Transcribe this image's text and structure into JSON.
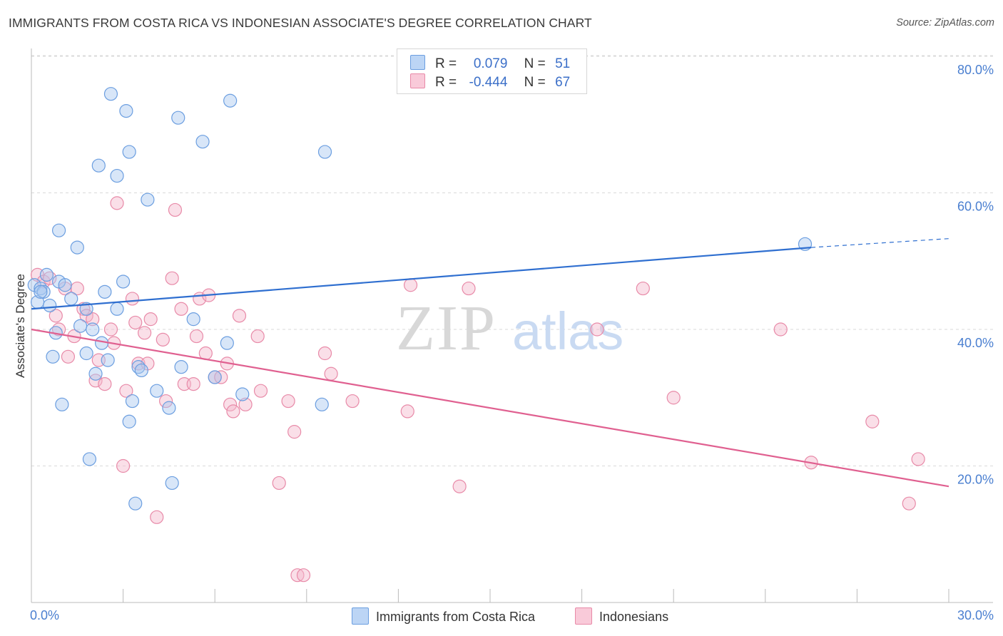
{
  "title": "IMMIGRANTS FROM COSTA RICA VS INDONESIAN ASSOCIATE'S DEGREE CORRELATION CHART",
  "source": "Source: ZipAtlas.com",
  "watermark": {
    "zip": "ZIP",
    "atlas": "atlas"
  },
  "legend": {
    "rows": [
      {
        "r_label": "R =",
        "r_value": "0.079",
        "n_label": "N =",
        "n_value": "51"
      },
      {
        "r_label": "R =",
        "r_value": "-0.444",
        "n_label": "N =",
        "n_value": "67"
      }
    ]
  },
  "colors": {
    "blue": "#a8c8f0",
    "blue_stroke": "#6b9ee0",
    "blue_line": "#2f6fd0",
    "pink": "#f5b8cc",
    "pink_stroke": "#e88aa8",
    "pink_line": "#e06090",
    "tick": "#4a7fd0",
    "grid": "#d9d9d9"
  },
  "chart_data": {
    "type": "scatter",
    "title": "IMMIGRANTS FROM COSTA RICA VS INDONESIAN ASSOCIATE'S DEGREE CORRELATION CHART",
    "xlabel": "",
    "ylabel": "Associate's Degree",
    "xlim": [
      0,
      30
    ],
    "ylim": [
      0,
      82
    ],
    "x_ticks": [
      "0.0%",
      "30.0%"
    ],
    "y_ticks": [
      {
        "value": 20,
        "label": "20.0%"
      },
      {
        "value": 40,
        "label": "40.0%"
      },
      {
        "value": 60,
        "label": "60.0%"
      },
      {
        "value": 80,
        "label": "80.0%"
      }
    ],
    "grid": true,
    "legend_position": "top-center",
    "series": [
      {
        "name": "Immigrants from Costa Rica",
        "color": "blue",
        "trend": {
          "x": [
            0,
            25.5
          ],
          "y": [
            43.0,
            52.0
          ],
          "dashed_to": [
            30,
            53.3
          ]
        },
        "points": [
          [
            0.1,
            46.5
          ],
          [
            0.2,
            44.0
          ],
          [
            0.3,
            46.0
          ],
          [
            0.4,
            45.5
          ],
          [
            0.5,
            48.0
          ],
          [
            0.6,
            43.5
          ],
          [
            0.7,
            36.0
          ],
          [
            0.8,
            39.5
          ],
          [
            0.9,
            47.0
          ],
          [
            1.1,
            46.5
          ],
          [
            1.3,
            44.5
          ],
          [
            0.9,
            54.5
          ],
          [
            1.0,
            29.0
          ],
          [
            1.5,
            52.0
          ],
          [
            1.6,
            40.5
          ],
          [
            1.8,
            43.0
          ],
          [
            1.8,
            36.5
          ],
          [
            1.9,
            21.0
          ],
          [
            2.0,
            40.0
          ],
          [
            2.1,
            33.5
          ],
          [
            2.3,
            38.0
          ],
          [
            2.4,
            45.5
          ],
          [
            2.5,
            35.5
          ],
          [
            2.6,
            74.5
          ],
          [
            2.8,
            43.0
          ],
          [
            2.8,
            62.5
          ],
          [
            2.2,
            64.0
          ],
          [
            3.0,
            47.0
          ],
          [
            3.1,
            72.0
          ],
          [
            3.2,
            66.0
          ],
          [
            3.2,
            26.5
          ],
          [
            3.3,
            29.5
          ],
          [
            3.4,
            14.5
          ],
          [
            3.5,
            34.5
          ],
          [
            3.6,
            34.0
          ],
          [
            3.8,
            59.0
          ],
          [
            4.1,
            31.0
          ],
          [
            4.5,
            28.5
          ],
          [
            4.6,
            17.5
          ],
          [
            4.8,
            71.0
          ],
          [
            4.9,
            34.5
          ],
          [
            5.3,
            41.5
          ],
          [
            5.6,
            67.5
          ],
          [
            6.0,
            33.0
          ],
          [
            6.4,
            38.0
          ],
          [
            6.5,
            73.5
          ],
          [
            6.9,
            30.5
          ],
          [
            9.5,
            29.0
          ],
          [
            9.6,
            66.0
          ],
          [
            25.3,
            52.5
          ],
          [
            0.3,
            45.5
          ]
        ]
      },
      {
        "name": "Indonesians",
        "color": "pink",
        "trend": {
          "x": [
            0,
            30
          ],
          "y": [
            40.0,
            17.0
          ]
        },
        "points": [
          [
            0.2,
            48.0
          ],
          [
            0.4,
            47.0
          ],
          [
            0.6,
            47.5
          ],
          [
            0.8,
            42.0
          ],
          [
            0.9,
            40.0
          ],
          [
            1.1,
            46.0
          ],
          [
            1.2,
            36.0
          ],
          [
            1.4,
            39.0
          ],
          [
            1.5,
            46.0
          ],
          [
            1.7,
            43.0
          ],
          [
            1.8,
            42.0
          ],
          [
            2.0,
            41.5
          ],
          [
            2.1,
            32.5
          ],
          [
            2.2,
            35.5
          ],
          [
            2.4,
            32.0
          ],
          [
            2.6,
            40.0
          ],
          [
            2.7,
            38.0
          ],
          [
            2.8,
            58.5
          ],
          [
            3.0,
            20.0
          ],
          [
            3.1,
            31.0
          ],
          [
            3.3,
            44.5
          ],
          [
            3.4,
            41.0
          ],
          [
            3.5,
            35.0
          ],
          [
            3.7,
            39.5
          ],
          [
            3.8,
            35.0
          ],
          [
            3.9,
            41.5
          ],
          [
            4.1,
            12.5
          ],
          [
            4.3,
            38.5
          ],
          [
            4.4,
            29.5
          ],
          [
            4.6,
            47.5
          ],
          [
            4.7,
            57.5
          ],
          [
            4.9,
            43.0
          ],
          [
            5.0,
            32.0
          ],
          [
            5.3,
            32.0
          ],
          [
            5.4,
            39.0
          ],
          [
            5.5,
            44.5
          ],
          [
            5.7,
            36.5
          ],
          [
            5.8,
            45.0
          ],
          [
            6.0,
            33.0
          ],
          [
            6.2,
            33.0
          ],
          [
            6.4,
            35.0
          ],
          [
            6.5,
            29.0
          ],
          [
            6.6,
            28.0
          ],
          [
            6.8,
            42.0
          ],
          [
            7.0,
            29.0
          ],
          [
            7.4,
            39.0
          ],
          [
            7.5,
            31.0
          ],
          [
            8.1,
            17.5
          ],
          [
            8.4,
            29.5
          ],
          [
            8.6,
            25.0
          ],
          [
            8.7,
            4.0
          ],
          [
            8.9,
            4.0
          ],
          [
            9.6,
            36.5
          ],
          [
            9.8,
            33.5
          ],
          [
            10.5,
            29.5
          ],
          [
            12.3,
            28.0
          ],
          [
            12.4,
            46.5
          ],
          [
            14.0,
            17.0
          ],
          [
            14.3,
            46.0
          ],
          [
            18.5,
            40.0
          ],
          [
            20.0,
            46.0
          ],
          [
            21.0,
            30.0
          ],
          [
            24.5,
            40.0
          ],
          [
            25.5,
            20.5
          ],
          [
            27.5,
            26.5
          ],
          [
            28.7,
            14.5
          ],
          [
            29.0,
            21.0
          ]
        ]
      }
    ]
  }
}
